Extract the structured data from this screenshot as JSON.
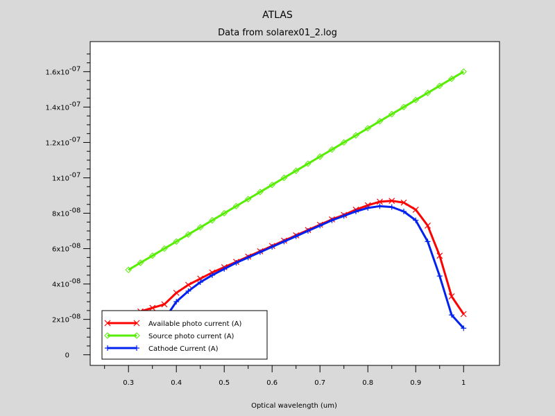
{
  "chart_data": {
    "type": "line",
    "title": "ATLAS",
    "subtitle": "Data from solarex01_2.log",
    "xlabel": "Optical wavelength (um)",
    "ylabel": "",
    "xlim": [
      0.22,
      1.075
    ],
    "ylim": [
      -6e-09,
      1.77e-07
    ],
    "xticks": [
      "0.3",
      "0.4",
      "0.5",
      "0.6",
      "0.7",
      "0.8",
      "0.9",
      "1"
    ],
    "yticks": [
      {
        "value": 0,
        "base": "0",
        "exp": ""
      },
      {
        "value": 2e-08,
        "base": "2x10",
        "exp": "-08"
      },
      {
        "value": 4e-08,
        "base": "4x10",
        "exp": "-08"
      },
      {
        "value": 6e-08,
        "base": "6x10",
        "exp": "-08"
      },
      {
        "value": 8e-08,
        "base": "8x10",
        "exp": "-08"
      },
      {
        "value": 1e-07,
        "base": "1x10",
        "exp": "-07"
      },
      {
        "value": 1.2e-07,
        "base": "1.2x10",
        "exp": "-07"
      },
      {
        "value": 1.4e-07,
        "base": "1.4x10",
        "exp": "-07"
      },
      {
        "value": 1.6e-07,
        "base": "1.6x10",
        "exp": "-07"
      }
    ],
    "legend_position": "bottom-left",
    "series": [
      {
        "name": "Available photo current (A)",
        "color": "#ff0000",
        "marker": "x",
        "x": [
          0.3,
          0.325,
          0.35,
          0.375,
          0.4,
          0.425,
          0.45,
          0.475,
          0.5,
          0.525,
          0.55,
          0.575,
          0.6,
          0.625,
          0.65,
          0.675,
          0.7,
          0.725,
          0.75,
          0.775,
          0.8,
          0.825,
          0.85,
          0.875,
          0.9,
          0.925,
          0.95,
          0.975,
          1.0
        ],
        "y": [
          2.2e-08,
          2.45e-08,
          2.65e-08,
          2.85e-08,
          3.5e-08,
          3.95e-08,
          4.3e-08,
          4.65e-08,
          4.95e-08,
          5.25e-08,
          5.55e-08,
          5.85e-08,
          6.15e-08,
          6.45e-08,
          6.75e-08,
          7.05e-08,
          7.35e-08,
          7.65e-08,
          7.9e-08,
          8.2e-08,
          8.45e-08,
          8.65e-08,
          8.7e-08,
          8.6e-08,
          8.2e-08,
          7.3e-08,
          5.6e-08,
          3.3e-08,
          2.3e-08
        ]
      },
      {
        "name": "Source photo current (A)",
        "color": "#55ee00",
        "marker": "diamond",
        "x": [
          0.3,
          0.325,
          0.35,
          0.375,
          0.4,
          0.425,
          0.45,
          0.475,
          0.5,
          0.525,
          0.55,
          0.575,
          0.6,
          0.625,
          0.65,
          0.675,
          0.7,
          0.725,
          0.75,
          0.775,
          0.8,
          0.825,
          0.85,
          0.875,
          0.9,
          0.925,
          0.95,
          0.975,
          1.0
        ],
        "y": [
          4.8e-08,
          5.2e-08,
          5.6e-08,
          6e-08,
          6.4e-08,
          6.8e-08,
          7.2e-08,
          7.6e-08,
          8e-08,
          8.4e-08,
          8.8e-08,
          9.2e-08,
          9.6e-08,
          1e-07,
          1.04e-07,
          1.08e-07,
          1.12e-07,
          1.16e-07,
          1.2e-07,
          1.24e-07,
          1.28e-07,
          1.32e-07,
          1.36e-07,
          1.4e-07,
          1.44e-07,
          1.48e-07,
          1.52e-07,
          1.56e-07,
          1.6e-07
        ]
      },
      {
        "name": "Cathode Current (A)",
        "color": "#0022ee",
        "marker": "plus",
        "x": [
          0.3,
          0.325,
          0.35,
          0.375,
          0.4,
          0.425,
          0.45,
          0.475,
          0.5,
          0.525,
          0.55,
          0.575,
          0.6,
          0.625,
          0.65,
          0.675,
          0.7,
          0.725,
          0.75,
          0.775,
          0.8,
          0.825,
          0.85,
          0.875,
          0.9,
          0.925,
          0.95,
          0.975,
          1.0
        ],
        "y": [
          9e-09,
          1.2e-08,
          1.5e-08,
          2e-08,
          3e-08,
          3.6e-08,
          4.1e-08,
          4.5e-08,
          4.85e-08,
          5.2e-08,
          5.5e-08,
          5.8e-08,
          6.1e-08,
          6.4e-08,
          6.7e-08,
          7e-08,
          7.3e-08,
          7.6e-08,
          7.85e-08,
          8.1e-08,
          8.3e-08,
          8.4e-08,
          8.35e-08,
          8.1e-08,
          7.6e-08,
          6.4e-08,
          4.45e-08,
          2.25e-08,
          1.5e-08
        ]
      }
    ]
  }
}
